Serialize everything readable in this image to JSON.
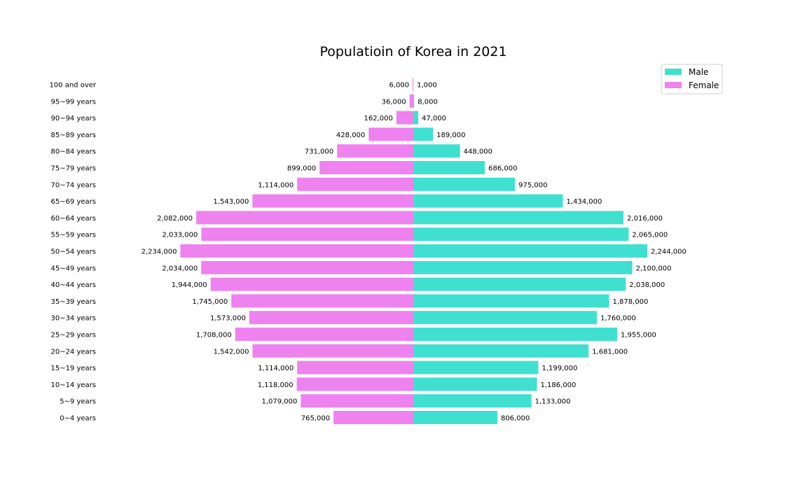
{
  "chart_data": {
    "type": "bar",
    "orientation": "horizontal",
    "layout": "population-pyramid",
    "title": "Populatioin of Korea in 2021",
    "xlabel": "",
    "ylabel": "",
    "grid": false,
    "legend_position": "top-right",
    "categories": [
      "0~4 years",
      "5~9 years",
      "10~14 years",
      "15~19 years",
      "20~24 years",
      "25~29 years",
      "30~34 years",
      "35~39 years",
      "40~44 years",
      "45~49 years",
      "50~54 years",
      "55~59 years",
      "60~64 years",
      "65~69 years",
      "70~74 years",
      "75~79 years",
      "80~84 years",
      "85~89 years",
      "90~94 years",
      "95~99 years",
      "100 and over"
    ],
    "series": [
      {
        "name": "Male",
        "color": "#40E0D0",
        "values": [
          806000,
          1133000,
          1186000,
          1199000,
          1681000,
          1955000,
          1760000,
          1878000,
          2038000,
          2100000,
          2244000,
          2065000,
          2016000,
          1434000,
          975000,
          686000,
          448000,
          189000,
          47000,
          8000,
          1000
        ],
        "labels": [
          "806,000",
          "1,133,000",
          "1,186,000",
          "1,199,000",
          "1,681,000",
          "1,955,000",
          "1,760,000",
          "1,878,000",
          "2,038,000",
          "2,100,000",
          "2,244,000",
          "2,065,000",
          "2,016,000",
          "1,434,000",
          "975,000",
          "686,000",
          "448,000",
          "189,000",
          "47,000",
          "8,000",
          "1,000"
        ]
      },
      {
        "name": "Female",
        "color": "#EE82EE",
        "values": [
          765000,
          1079000,
          1118000,
          1114000,
          1542000,
          1708000,
          1573000,
          1745000,
          1944000,
          2034000,
          2234000,
          2033000,
          2082000,
          1543000,
          1114000,
          899000,
          731000,
          428000,
          162000,
          36000,
          6000
        ],
        "labels": [
          "765,000",
          "1,079,000",
          "1,118,000",
          "1,114,000",
          "1,542,000",
          "1,708,000",
          "1,573,000",
          "1,745,000",
          "1,944,000",
          "2,034,000",
          "2,234,000",
          "2,033,000",
          "2,082,000",
          "1,543,000",
          "1,114,000",
          "899,000",
          "731,000",
          "428,000",
          "162,000",
          "36,000",
          "6,000"
        ]
      }
    ]
  }
}
